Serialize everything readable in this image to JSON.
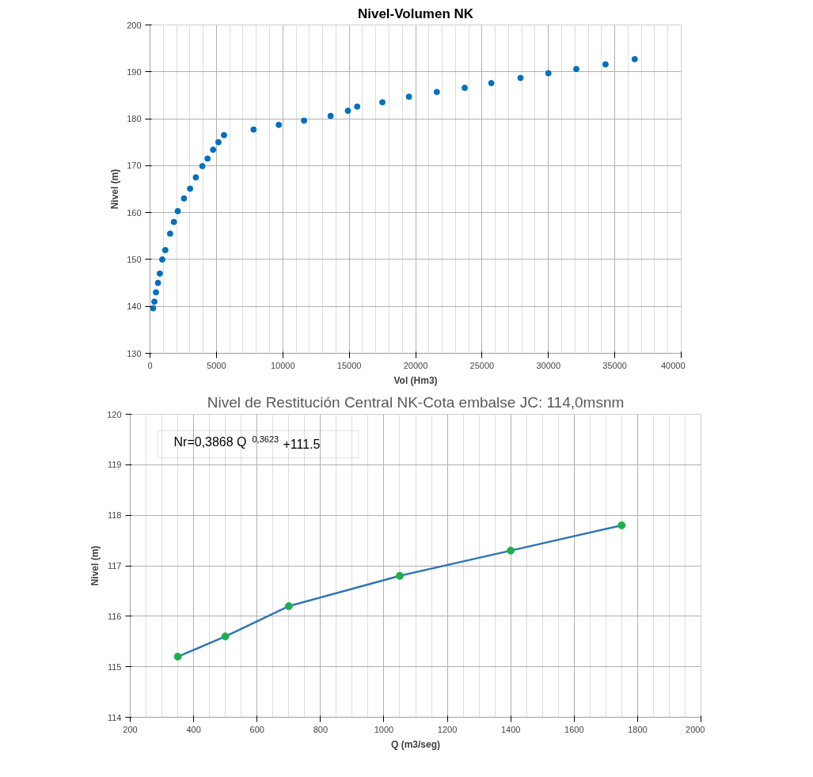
{
  "chart_data": [
    {
      "type": "scatter",
      "title": "Nivel-Volumen NK",
      "xlabel": "Vol (Hm3)",
      "ylabel": "Nivel (m)",
      "xlim": [
        0,
        40000
      ],
      "xticks": [
        0,
        5000,
        10000,
        15000,
        20000,
        25000,
        30000,
        35000,
        40000
      ],
      "ylim": [
        130,
        200
      ],
      "yticks": [
        130,
        140,
        150,
        160,
        170,
        180,
        190,
        200
      ],
      "grid": true,
      "marker": "circle",
      "series": [
        {
          "color": "#0070c0",
          "x": [
            230,
            330,
            450,
            600,
            740,
            925,
            1150,
            1510,
            1800,
            2090,
            2560,
            3020,
            3450,
            3940,
            4330,
            4750,
            5150,
            5570,
            7800,
            9700,
            11600,
            13600,
            14900,
            15600,
            17500,
            19500,
            21600,
            23700,
            25700,
            27900,
            30000,
            32100,
            34300,
            36500
          ],
          "values": [
            139.6,
            141,
            143,
            145,
            147,
            150,
            152,
            155.5,
            158,
            160.3,
            163,
            165.1,
            167.5,
            169.9,
            171.5,
            173.4,
            175,
            176.5,
            177.7,
            178.7,
            179.6,
            180.6,
            181.7,
            182.6,
            183.5,
            184.7,
            185.7,
            186.6,
            187.6,
            188.7,
            189.7,
            190.6,
            191.6,
            192.7
          ]
        }
      ]
    },
    {
      "type": "line",
      "title": "Nivel de Restitución Central NK-Cota embalse JC: 114,0msnm",
      "xlabel": "Q (m3/seg)",
      "ylabel": "Nivel (m)",
      "xlim": [
        200,
        2000
      ],
      "xticks": [
        200,
        400,
        600,
        800,
        1000,
        1200,
        1400,
        1600,
        1800,
        2000
      ],
      "ylim": [
        114,
        120
      ],
      "yticks": [
        114,
        115,
        116,
        117,
        118,
        119,
        120
      ],
      "grid": true,
      "annotations": [
        "Nr=0,3868 Q$^{0,3623}$+111.5"
      ],
      "series": [
        {
          "type": "line",
          "color": "#2e75b6",
          "marker": "none",
          "x": [
            350,
            500,
            700,
            1050,
            1400,
            1750
          ],
          "values": [
            115.2,
            115.6,
            116.2,
            116.8,
            117.3,
            117.8
          ]
        },
        {
          "type": "scatter",
          "color": "#1db14b",
          "marker": "circle",
          "x": [
            350,
            500,
            700,
            1050,
            1400,
            1750
          ],
          "values": [
            115.2,
            115.6,
            116.2,
            116.8,
            117.3,
            117.8
          ]
        }
      ]
    }
  ]
}
